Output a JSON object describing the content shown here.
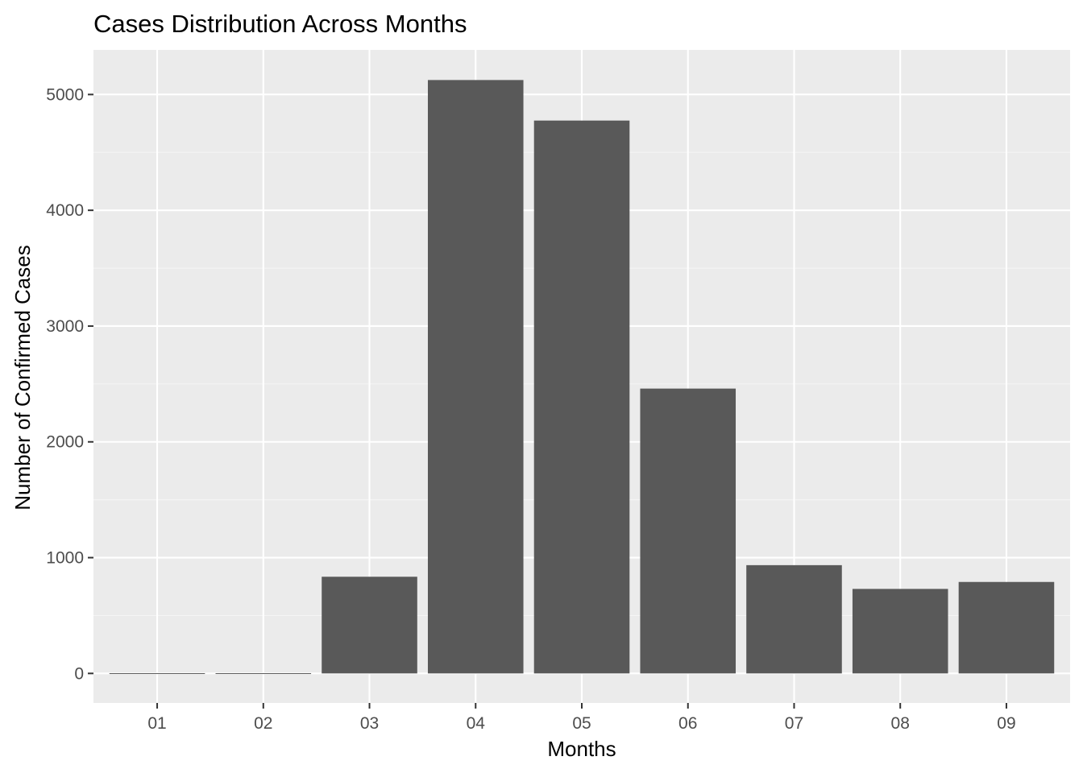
{
  "chart_data": {
    "type": "bar",
    "title": "Cases Distribution Across Months",
    "xlabel": "Months",
    "ylabel": "Number of Confirmed Cases",
    "categories": [
      "01",
      "02",
      "03",
      "04",
      "05",
      "06",
      "07",
      "08",
      "09"
    ],
    "values": [
      2,
      2,
      835,
      5125,
      4775,
      2460,
      935,
      730,
      790
    ],
    "yticks": [
      0,
      1000,
      2000,
      3000,
      4000,
      5000
    ],
    "ytick_labels": [
      "0",
      "1000",
      "2000",
      "3000",
      "4000",
      "5000"
    ],
    "ylim": [
      -255,
      5385
    ],
    "grid": true,
    "legend": "none",
    "colors": {
      "bar": "#595959",
      "panel": "#ebebeb",
      "grid_major": "#ffffff",
      "grid_minor": "#f5f5f5",
      "tick_label": "#4d4d4d",
      "tick_mark": "#333333"
    }
  }
}
